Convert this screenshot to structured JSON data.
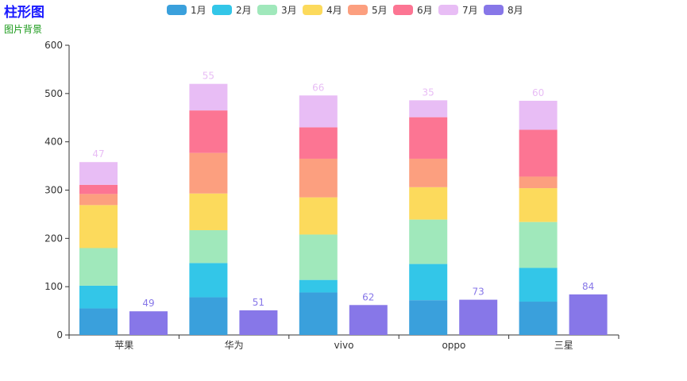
{
  "chart_data": {
    "type": "bar",
    "title": "柱形图",
    "subtitle": "图片背景",
    "categories": [
      "苹果",
      "华为",
      "vivo",
      "oppo",
      "三星"
    ],
    "ylim": [
      0,
      600
    ],
    "yticks": [
      0,
      100,
      200,
      300,
      400,
      500,
      600
    ],
    "legend_position": "top-center",
    "stacked_series": [
      {
        "name": "1月",
        "color": "#3aa0dc",
        "values": [
          55,
          78,
          88,
          72,
          69
        ]
      },
      {
        "name": "2月",
        "color": "#33c6e8",
        "values": [
          47,
          71,
          26,
          75,
          70
        ]
      },
      {
        "name": "3月",
        "color": "#a0e8bb",
        "values": [
          78,
          68,
          94,
          92,
          95
        ]
      },
      {
        "name": "4月",
        "color": "#fcda5c",
        "values": [
          89,
          76,
          77,
          67,
          70
        ]
      },
      {
        "name": "5月",
        "color": "#fc9f7f",
        "values": [
          23,
          84,
          80,
          59,
          24
        ]
      },
      {
        "name": "6月",
        "color": "#fc7593",
        "values": [
          19,
          88,
          65,
          86,
          97
        ]
      },
      {
        "name": "7月",
        "color": "#e8bdf5",
        "values": [
          47,
          55,
          66,
          35,
          60
        ]
      }
    ],
    "separate_series": [
      {
        "name": "8月",
        "color": "#8777e8",
        "values": [
          49,
          51,
          62,
          73,
          84
        ]
      }
    ],
    "data_labels": {
      "7月": [
        "47",
        "55",
        "66",
        "35",
        "60"
      ],
      "8月": [
        "49",
        "51",
        "62",
        "73",
        "84"
      ]
    }
  }
}
